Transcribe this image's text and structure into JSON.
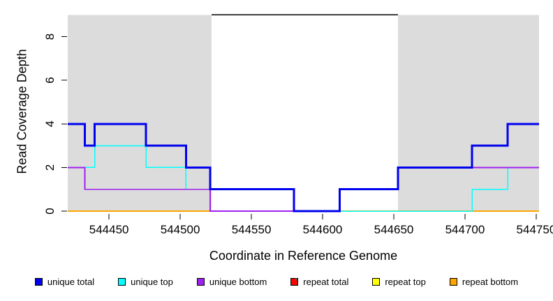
{
  "chart_data": {
    "type": "line",
    "step_style": "post",
    "title": "",
    "xlabel": "Coordinate in Reference Genome",
    "ylabel": "Read Coverage Depth",
    "xlim": [
      544421,
      544752
    ],
    "ylim": [
      0,
      9.15
    ],
    "xticks": [
      544450,
      544500,
      544550,
      544600,
      544650,
      544700,
      544750
    ],
    "yticks": [
      0,
      2,
      4,
      6,
      8
    ],
    "grid": false,
    "legend_position": "bottom",
    "colors": {
      "background": "#ffffff",
      "shading": "#dcdcdc",
      "axis": "#000000",
      "boundary_line": "#000000",
      "unique_total": "#0000ee",
      "unique_top": "#00ffff",
      "unique_bottom": "#a020f0",
      "repeat_total": "#ff0000",
      "repeat_top": "#ffff00",
      "repeat_bottom": "#ffa500"
    },
    "shaded_regions": [
      {
        "x_start": 544421,
        "x_end": 544522,
        "y_start": 0,
        "y_end": 9
      },
      {
        "x_start": 544653,
        "x_end": 544752,
        "y_start": 0,
        "y_end": 9
      }
    ],
    "boundary_line": {
      "x_start": 544522,
      "x_end": 544653,
      "y": 9
    },
    "series": [
      {
        "key": "repeat_total",
        "name": "repeat total",
        "color": "#ff0000",
        "linewidth": 1.5,
        "steps": [
          [
            544421,
            0
          ],
          [
            544752,
            0
          ]
        ]
      },
      {
        "key": "repeat_top",
        "name": "repeat top",
        "color": "#ffff00",
        "linewidth": 1.5,
        "steps": [
          [
            544421,
            0
          ],
          [
            544752,
            0
          ]
        ]
      },
      {
        "key": "repeat_bottom",
        "name": "repeat bottom",
        "color": "#ffa500",
        "linewidth": 2,
        "steps": [
          [
            544421,
            0
          ],
          [
            544752,
            0
          ]
        ]
      },
      {
        "key": "unique_top",
        "name": "unique top",
        "color": "#00ffff",
        "linewidth": 1.5,
        "steps": [
          [
            544421,
            2
          ],
          [
            544440,
            3
          ],
          [
            544476,
            2
          ],
          [
            544504,
            1
          ],
          [
            544580,
            0
          ],
          [
            544705,
            1
          ],
          [
            544730,
            2
          ],
          [
            544752,
            2
          ]
        ]
      },
      {
        "key": "unique_bottom",
        "name": "unique bottom",
        "color": "#a020f0",
        "linewidth": 1.8,
        "steps": [
          [
            544421,
            2
          ],
          [
            544433,
            1
          ],
          [
            544521,
            0
          ],
          [
            544612,
            1
          ],
          [
            544653,
            2
          ],
          [
            544752,
            2
          ]
        ]
      },
      {
        "key": "unique_total",
        "name": "unique total",
        "color": "#0000ee",
        "linewidth": 3,
        "steps": [
          [
            544421,
            4
          ],
          [
            544433,
            3
          ],
          [
            544440,
            4
          ],
          [
            544476,
            3
          ],
          [
            544504,
            2
          ],
          [
            544521,
            1
          ],
          [
            544580,
            0
          ],
          [
            544612,
            1
          ],
          [
            544653,
            2
          ],
          [
            544705,
            3
          ],
          [
            544730,
            4
          ],
          [
            544752,
            4
          ]
        ]
      }
    ],
    "legend": [
      {
        "label": "unique total",
        "color": "#0000ee"
      },
      {
        "label": "unique top",
        "color": "#00ffff"
      },
      {
        "label": "unique bottom",
        "color": "#a020f0"
      },
      {
        "label": "repeat total",
        "color": "#ff0000"
      },
      {
        "label": "repeat top",
        "color": "#ffff00"
      },
      {
        "label": "repeat bottom",
        "color": "#ffa500"
      }
    ]
  }
}
